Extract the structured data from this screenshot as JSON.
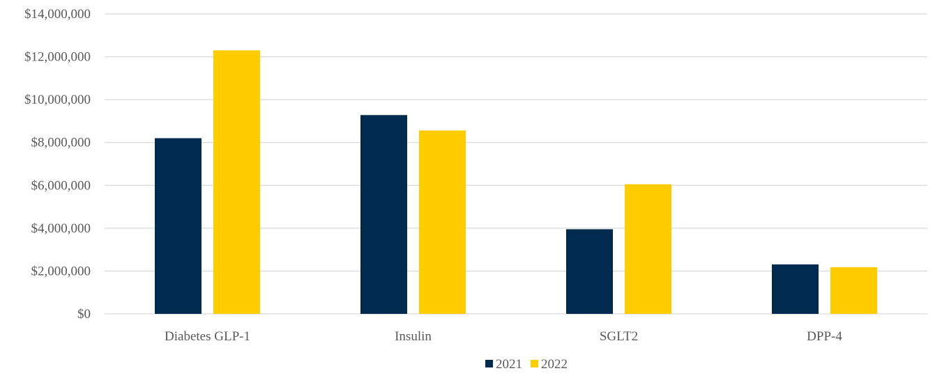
{
  "chart_data": {
    "type": "bar",
    "title": "",
    "xlabel": "",
    "ylabel": "",
    "categories": [
      "Diabetes GLP-1",
      "Insulin",
      "SGLT2",
      "DPP-4"
    ],
    "series": [
      {
        "name": "2021",
        "values": [
          8200000,
          9280000,
          3950000,
          2310000
        ],
        "color": "#002a4e"
      },
      {
        "name": "2022",
        "values": [
          12300000,
          8560000,
          6050000,
          2180000
        ],
        "color": "#ffcc00"
      }
    ],
    "ylim": [
      0,
      14000000
    ],
    "yticks": [
      "$0",
      "$2,000,000",
      "$4,000,000",
      "$6,000,000",
      "$8,000,000",
      "$10,000,000",
      "$12,000,000",
      "$14,000,000"
    ],
    "grid": true,
    "legend_position": "bottom"
  }
}
